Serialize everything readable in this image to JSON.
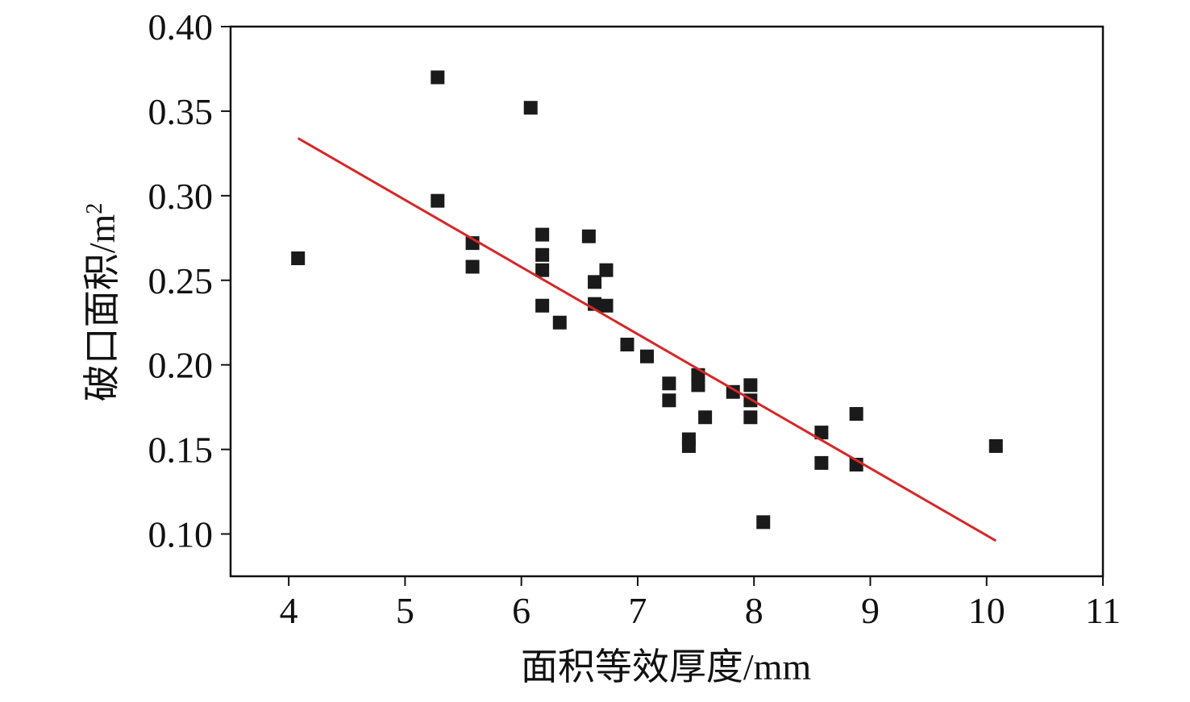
{
  "chart_data": {
    "type": "scatter",
    "xlabel": "面积等效厚度/mm",
    "ylabel_main": "破口面积/m",
    "ylabel_sup": "2",
    "xlim": [
      3.5,
      11
    ],
    "ylim": [
      0.075,
      0.4
    ],
    "x_ticks": [
      4,
      5,
      6,
      7,
      8,
      9,
      10,
      11
    ],
    "x_tick_labels": [
      "4",
      "5",
      "6",
      "7",
      "8",
      "9",
      "10",
      "11"
    ],
    "y_ticks": [
      0.1,
      0.15,
      0.2,
      0.25,
      0.3,
      0.35,
      0.4
    ],
    "y_tick_labels": [
      "0.10",
      "0.15",
      "0.20",
      "0.25",
      "0.30",
      "0.35",
      "0.40"
    ],
    "grid": false,
    "legend": "none",
    "colors": {
      "points": "#1a1a1a",
      "fit_line": "#d62728",
      "axes": "#111111"
    },
    "series": [
      {
        "type": "scatter",
        "points": [
          [
            4.08,
            0.263
          ],
          [
            5.28,
            0.37
          ],
          [
            5.28,
            0.297
          ],
          [
            5.58,
            0.272
          ],
          [
            5.58,
            0.258
          ],
          [
            6.08,
            0.352
          ],
          [
            6.18,
            0.277
          ],
          [
            6.18,
            0.265
          ],
          [
            6.18,
            0.256
          ],
          [
            6.18,
            0.235
          ],
          [
            6.33,
            0.225
          ],
          [
            6.58,
            0.276
          ],
          [
            6.63,
            0.249
          ],
          [
            6.63,
            0.236
          ],
          [
            6.73,
            0.256
          ],
          [
            6.73,
            0.235
          ],
          [
            6.91,
            0.212
          ],
          [
            7.08,
            0.205
          ],
          [
            7.27,
            0.189
          ],
          [
            7.27,
            0.179
          ],
          [
            7.44,
            0.156
          ],
          [
            7.44,
            0.152
          ],
          [
            7.52,
            0.194
          ],
          [
            7.52,
            0.188
          ],
          [
            7.58,
            0.169
          ],
          [
            7.82,
            0.184
          ],
          [
            7.97,
            0.188
          ],
          [
            7.97,
            0.179
          ],
          [
            7.97,
            0.169
          ],
          [
            8.08,
            0.107
          ],
          [
            8.58,
            0.16
          ],
          [
            8.58,
            0.142
          ],
          [
            8.88,
            0.171
          ],
          [
            8.88,
            0.141
          ],
          [
            10.08,
            0.152
          ]
        ]
      },
      {
        "type": "line",
        "points": [
          [
            4.08,
            0.334
          ],
          [
            10.08,
            0.096
          ]
        ]
      }
    ]
  }
}
